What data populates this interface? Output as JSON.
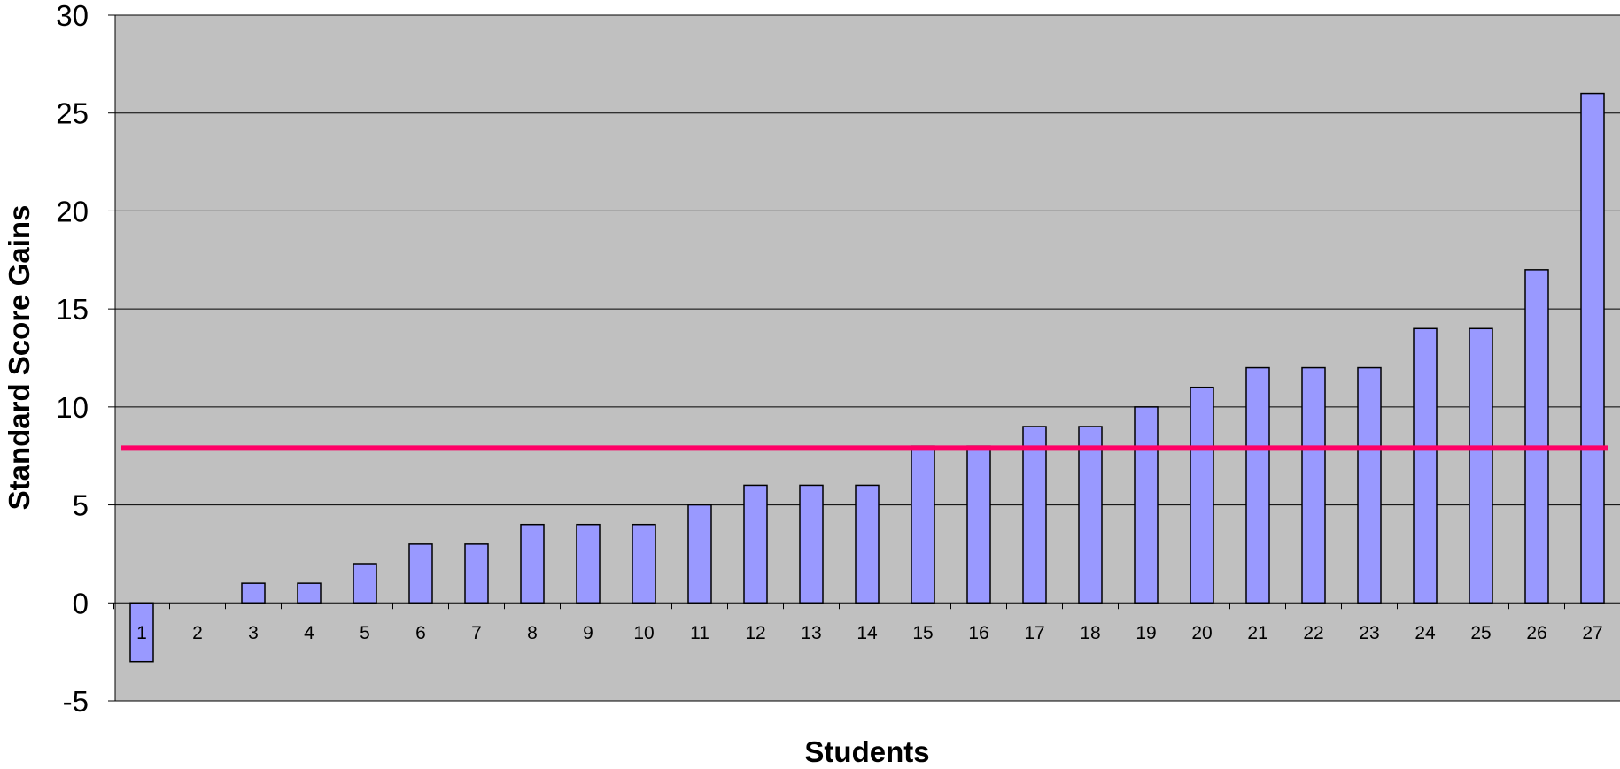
{
  "chart_data": {
    "type": "bar",
    "categories": [
      "1",
      "2",
      "3",
      "4",
      "5",
      "6",
      "7",
      "8",
      "9",
      "10",
      "11",
      "12",
      "13",
      "14",
      "15",
      "16",
      "17",
      "18",
      "19",
      "20",
      "21",
      "22",
      "23",
      "24",
      "25",
      "26",
      "27"
    ],
    "values": [
      -3,
      0,
      1,
      1,
      2,
      3,
      3,
      4,
      4,
      4,
      5,
      6,
      6,
      6,
      8,
      8,
      9,
      9,
      10,
      11,
      12,
      12,
      12,
      14,
      14,
      17,
      26
    ],
    "title": "",
    "xlabel": "Students",
    "ylabel": "Standard Score Gains",
    "ylim": [
      -5,
      30
    ],
    "yticks": [
      -5,
      0,
      5,
      10,
      15,
      20,
      25,
      30
    ],
    "yticks_labels": [
      "-5",
      "0",
      "5",
      "10",
      "15",
      "20",
      "25",
      "30"
    ],
    "reference_line": {
      "value": 7.9
    },
    "grid": true,
    "colors": {
      "plot_background": "#c0c0c0",
      "bar_fill": "#9999ff",
      "bar_stroke": "#000000",
      "gridline": "#000000",
      "reference_line": "#ff0066"
    }
  }
}
